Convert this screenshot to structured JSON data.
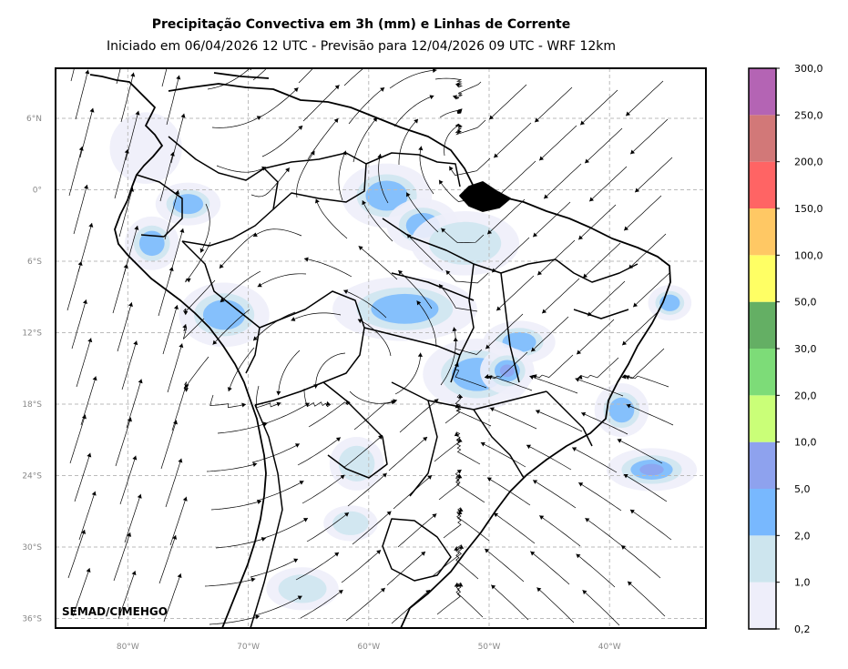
{
  "title": "Precipitação Convectiva em 3h (mm) e Linhas de Corrente",
  "subtitle": "Iniciado em 06/04/2026 12 UTC - Previsão para 12/04/2026 09 UTC - WRF 12km",
  "credit": "SEMAD/CIMEHGO",
  "map": {
    "lon_range": [
      -86,
      -32
    ],
    "lat_range": [
      -36.8,
      10.2
    ],
    "lat_ticks": [
      {
        "value": 6,
        "label": "6°N"
      },
      {
        "value": 0,
        "label": "0°"
      },
      {
        "value": -6,
        "label": "6°S"
      },
      {
        "value": -12,
        "label": "12°S"
      },
      {
        "value": -18,
        "label": "18°S"
      },
      {
        "value": -24,
        "label": "24°S"
      },
      {
        "value": -30,
        "label": "30°S"
      },
      {
        "value": -36,
        "label": "36°S"
      }
    ],
    "lon_ticks": [
      {
        "value": -80,
        "label": "80°W"
      },
      {
        "value": -70,
        "label": "70°W"
      },
      {
        "value": -60,
        "label": "60°W"
      },
      {
        "value": -50,
        "label": "50°W"
      },
      {
        "value": -40,
        "label": "40°W"
      }
    ],
    "gridlines": true
  },
  "colorbar": {
    "levels": [
      "0,2",
      "1,0",
      "2,0",
      "5,0",
      "10,0",
      "20,0",
      "30,0",
      "50,0",
      "100,0",
      "150,0",
      "200,0",
      "250,0",
      "300,0"
    ],
    "colors": [
      "#eeeefa",
      "#cde5ee",
      "#78b8fe",
      "#8ea2ee",
      "#caff78",
      "#7ddc78",
      "#64af64",
      "#ffff64",
      "#ffc864",
      "#ff6464",
      "#d27878",
      "#b464b4"
    ]
  },
  "precip_blobs": [
    {
      "lon": -58.5,
      "lat": -0.5,
      "rlon": 2.5,
      "rlat": 1.8,
      "level": 2
    },
    {
      "lon": -55.5,
      "lat": -3.0,
      "rlon": 2.0,
      "rlat": 1.5,
      "level": 2
    },
    {
      "lon": -52.0,
      "lat": -4.5,
      "rlon": 3.0,
      "rlat": 1.8,
      "level": 1
    },
    {
      "lon": -78.0,
      "lat": -4.5,
      "rlon": 1.5,
      "rlat": 1.5,
      "level": 2
    },
    {
      "lon": -75.0,
      "lat": -1.2,
      "rlon": 1.8,
      "rlat": 1.2,
      "level": 2
    },
    {
      "lon": -72.0,
      "lat": -10.5,
      "rlon": 2.5,
      "rlat": 1.8,
      "level": 2
    },
    {
      "lon": -57.0,
      "lat": -10.0,
      "rlon": 4.0,
      "rlat": 1.8,
      "level": 2
    },
    {
      "lon": -47.5,
      "lat": -12.8,
      "rlon": 2.0,
      "rlat": 1.2,
      "level": 2
    },
    {
      "lon": -51.0,
      "lat": -15.5,
      "rlon": 3.0,
      "rlat": 2.0,
      "level": 2
    },
    {
      "lon": -48.5,
      "lat": -15.2,
      "rlon": 1.5,
      "rlat": 1.3,
      "level": 3
    },
    {
      "lon": -39.0,
      "lat": -18.5,
      "rlon": 1.5,
      "rlat": 1.5,
      "level": 2
    },
    {
      "lon": -36.5,
      "lat": -23.5,
      "rlon": 2.5,
      "rlat": 1.2,
      "level": 3
    },
    {
      "lon": -35.0,
      "lat": -9.5,
      "rlon": 1.2,
      "rlat": 1.0,
      "level": 2
    },
    {
      "lon": -65.5,
      "lat": -33.5,
      "rlon": 2.0,
      "rlat": 1.2,
      "level": 1
    },
    {
      "lon": -78.5,
      "lat": 3.5,
      "rlon": 2.0,
      "rlat": 2.0,
      "level": 0
    },
    {
      "lon": -61.5,
      "lat": -28.0,
      "rlon": 1.5,
      "rlat": 1.0,
      "level": 1
    },
    {
      "lon": -61.0,
      "lat": -23.0,
      "rlon": 1.5,
      "rlat": 1.5,
      "level": 1
    }
  ]
}
